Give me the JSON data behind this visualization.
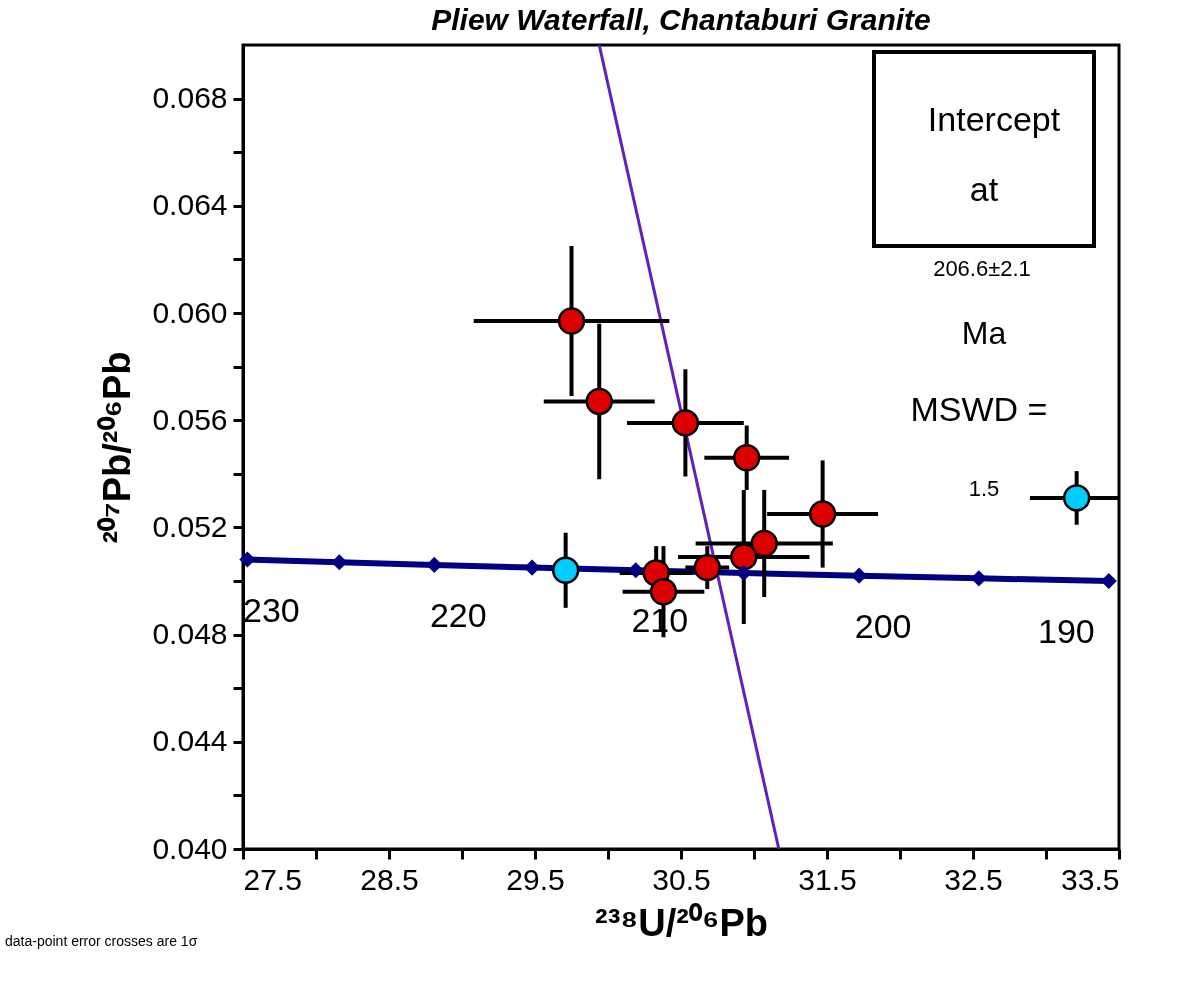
{
  "chart_data": {
    "type": "scatter",
    "title": "Pliew Waterfall, Chantaburi Granite",
    "xlabel": "²³⁸U/²⁰⁶Pb",
    "ylabel": "²⁰⁷Pb/²⁰⁶Pb",
    "xlim": [
      27.5,
      33.5
    ],
    "ylim": [
      0.04,
      0.07
    ],
    "xticks": [
      27.5,
      {
        "value": 28.0,
        "label": null
      },
      28.5,
      {
        "value": 29.0,
        "label": null
      },
      29.5,
      {
        "value": 30.0,
        "label": null
      },
      30.5,
      {
        "value": 31.0,
        "label": null
      },
      31.5,
      {
        "value": 32.0,
        "label": null
      },
      32.5,
      {
        "value": 33.0,
        "label": null
      },
      33.5
    ],
    "yticks": [
      {
        "value": 0.04,
        "label": "0.040"
      },
      {
        "value": 0.042,
        "label": null
      },
      {
        "value": 0.044,
        "label": "0.044"
      },
      {
        "value": 0.046,
        "label": null
      },
      {
        "value": 0.048,
        "label": "0.048"
      },
      {
        "value": 0.05,
        "label": null
      },
      {
        "value": 0.052,
        "label": "0.052"
      },
      {
        "value": 0.054,
        "label": null
      },
      {
        "value": 0.056,
        "label": "0.056"
      },
      {
        "value": 0.058,
        "label": null
      },
      {
        "value": 0.06,
        "label": "0.060"
      },
      {
        "value": 0.062,
        "label": null
      },
      {
        "value": 0.064,
        "label": "0.064"
      },
      {
        "value": 0.066,
        "label": null
      },
      {
        "value": 0.068,
        "label": "0.068"
      }
    ],
    "grid": false,
    "series": [
      {
        "type": "line",
        "color": "#000080",
        "marker": "diamond",
        "x": [
          27.53,
          28.16,
          28.81,
          29.48,
          30.19,
          30.93,
          31.72,
          32.54,
          33.43
        ],
        "values": [
          0.0508,
          0.0507,
          0.0506,
          0.0505,
          0.0504,
          0.0503,
          0.0502,
          0.0501,
          0.05
        ]
      },
      {
        "type": "line",
        "color": "#6020c0",
        "marker": "none",
        "x": [
          29.94,
          31.17
        ],
        "values": [
          0.07,
          0.04
        ]
      },
      {
        "color": "#dd0000",
        "marker": "circle",
        "x": [
          29.75,
          29.94,
          30.53,
          30.95,
          31.47,
          31.07,
          30.93,
          30.68,
          30.33,
          30.38
        ],
        "values": [
          0.0597,
          0.0567,
          0.0559,
          0.0546,
          0.0525,
          0.0514,
          0.0509,
          0.0505,
          0.0503,
          0.0496
        ],
        "errors": [
          0.0028,
          0.0029,
          0.002,
          0.0012,
          0.002,
          0.002,
          0.0025,
          0.0008,
          0.001,
          0.0017
        ],
        "xerrors": [
          0.67,
          0.38,
          0.4,
          0.29,
          0.38,
          0.47,
          0.45,
          0.15,
          0.25,
          0.28
        ]
      },
      {
        "color": "#00ccff",
        "marker": "circle",
        "x": [
          29.71,
          33.21
        ],
        "values": [
          0.0504,
          0.0531
        ],
        "errors": [
          0.0014,
          0.001
        ],
        "xerrors": [
          null,
          0.32
        ]
      }
    ],
    "annotations": [
      {
        "text": "230",
        "x": 27.53,
        "y": 0.0508
      },
      {
        "text": "220",
        "x": 28.81,
        "y": 0.0506
      },
      {
        "text": "210",
        "x": 30.19,
        "y": 0.0504
      },
      {
        "text": "200",
        "x": 31.72,
        "y": 0.0502
      },
      {
        "text": "190",
        "x": 33.43,
        "y": 0.05
      },
      "Intercept",
      "at",
      "206.6±2.1",
      "Ma",
      "MSWD =",
      "1.5",
      "data-point error crosses are 1σ"
    ]
  }
}
